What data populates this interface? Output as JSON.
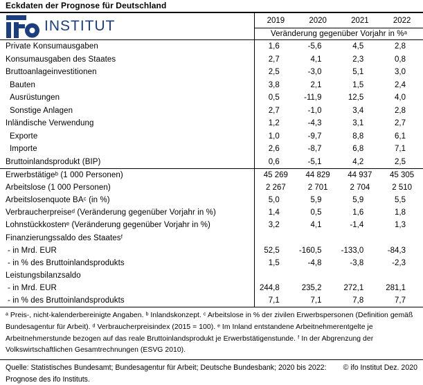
{
  "title": "Eckdaten der Prognose für Deutschland",
  "brand": {
    "logo_text": "ifo",
    "logo_suffix": "INSTITUT"
  },
  "colors": {
    "brand_blue": "#1b3e7e",
    "text": "#000000",
    "background": "#ffffff"
  },
  "table": {
    "years": [
      "2019",
      "2020",
      "2021",
      "2022"
    ],
    "unit_header": "Veränderung gegenüber Vorjahr in %ᵃ",
    "rows_a": [
      {
        "label": "Private Konsumausgaben",
        "indent": 0,
        "align": "decimal",
        "values": [
          "1,6",
          "-5,6",
          "4,5",
          "2,8"
        ]
      },
      {
        "label": "Konsumausgaben des Staates",
        "indent": 0,
        "align": "decimal",
        "values": [
          "2,7",
          "4,1",
          "2,3",
          "0,8"
        ]
      },
      {
        "label": "Bruttoanlageinvestitionen",
        "indent": 0,
        "align": "decimal",
        "values": [
          "2,5",
          "-3,0",
          "5,1",
          "3,0"
        ]
      },
      {
        "label": "Bauten",
        "indent": 1,
        "align": "decimal",
        "values": [
          "3,8",
          "2,1",
          "1,5",
          "2,4"
        ]
      },
      {
        "label": "Ausrüstungen",
        "indent": 1,
        "align": "decimal",
        "values": [
          "0,5",
          "-11,9",
          "12,5",
          "4,0"
        ]
      },
      {
        "label": "Sonstige Anlagen",
        "indent": 1,
        "align": "decimal",
        "values": [
          "2,7",
          "-1,0",
          "3,4",
          "2,8"
        ]
      },
      {
        "label": "Inländische Verwendung",
        "indent": 0,
        "align": "decimal",
        "values": [
          "1,2",
          "-4,3",
          "3,1",
          "2,7"
        ]
      },
      {
        "label": "Exporte",
        "indent": 1,
        "align": "decimal",
        "values": [
          "1,0",
          "-9,7",
          "8,8",
          "6,1"
        ]
      },
      {
        "label": "Importe",
        "indent": 1,
        "align": "decimal",
        "values": [
          "2,6",
          "-8,7",
          "6,8",
          "7,1"
        ]
      },
      {
        "label": "Bruttoinlandsprodukt (BIP)",
        "indent": 0,
        "align": "decimal",
        "values": [
          "0,6",
          "-5,1",
          "4,2",
          "2,5"
        ]
      }
    ],
    "rows_b": [
      {
        "label": "Erwerbstätigeᵇ (1 000 Personen)",
        "indent": 0,
        "align": "center",
        "values": [
          "45 269",
          "44 829",
          "44 937",
          "45 305"
        ]
      },
      {
        "label": "Arbeitslose (1 000 Personen)",
        "indent": 0,
        "align": "center",
        "values": [
          "2 267",
          "2 701",
          "2 704",
          "2 510"
        ]
      },
      {
        "label": "Arbeitslosenquote BAᶜ (in %)",
        "indent": 0,
        "align": "decimal",
        "values": [
          "5,0",
          "5,9",
          "5,9",
          "5,5"
        ]
      },
      {
        "label": "Verbraucherpreiseᵈ (Veränderung gegenüber Vorjahr in %)",
        "indent": 0,
        "align": "decimal",
        "values": [
          "1,4",
          "0,5",
          "1,6",
          "1,8"
        ]
      },
      {
        "label": "Lohnstückkostenᵉ (Veränderung gegenüber Vorjahr in %)",
        "indent": 0,
        "align": "decimal",
        "values": [
          "3,2",
          "4,1",
          "-1,4",
          "1,3"
        ]
      },
      {
        "label": "Finanzierungssaldo des Staatesᶠ",
        "indent": 0,
        "align": "decimal",
        "values": [
          "",
          "",
          "",
          ""
        ]
      },
      {
        "label": "- in Mrd. EUR",
        "indent": "dash",
        "align": "decimal",
        "values": [
          "52,5",
          "-160,5",
          "-133,0",
          "-84,3"
        ]
      },
      {
        "label": "- in % des Bruttoinlandsprodukts",
        "indent": "dash",
        "align": "decimal",
        "values": [
          "1,5",
          "-4,8",
          "-3,8",
          "-2,3"
        ]
      },
      {
        "label": "Leistungsbilanzsaldo",
        "indent": 0,
        "align": "decimal",
        "values": [
          "",
          "",
          "",
          ""
        ]
      },
      {
        "label": "- in Mrd. EUR",
        "indent": "dash",
        "align": "decimal",
        "values": [
          "244,8",
          "235,2",
          "272,1",
          "281,1"
        ]
      },
      {
        "label": "- in % des Bruttoinlandsprodukts",
        "indent": "dash",
        "align": "decimal",
        "values": [
          "7,1",
          "7,1",
          "7,8",
          "7,7"
        ]
      }
    ]
  },
  "footnotes": "ᵃ Preis-, nicht-kalenderbereinigte Angaben. ᵇ Inlandskonzept. ᶜ Arbeitslose in % der zivilen Erwerbspersonen (Definition gemäß Bundesagentur für Arbeit). ᵈ Verbraucherpreisindex (2015 = 100). ᵉ Im Inland entstandene Arbeitnehmerentgelte je Arbeitnehmerstunde bezogen auf das reale Bruttoinlandsprodukt je Erwerbstätigenstunde. ᶠ In der Abgrenzung der Volkswirtschaftlichen Gesamtrechnungen (ESVG 2010).",
  "source": {
    "left": "Quelle: Statistisches Bundesamt; Bundesagentur für Arbeit; Deutsche Bundesbank; 2020 bis 2022: Prognose des ifo Instituts.",
    "right": "© ifo Institut Dez. 2020"
  }
}
